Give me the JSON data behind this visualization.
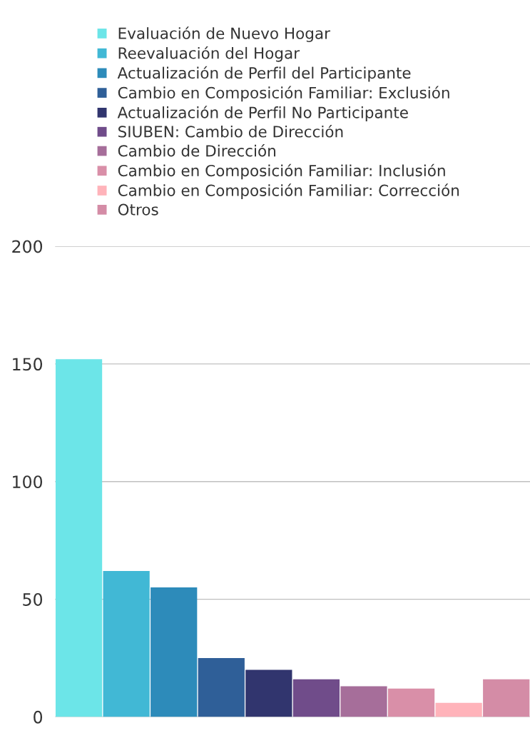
{
  "chart_data": {
    "type": "bar",
    "categories": [
      null,
      null,
      null,
      null,
      null,
      null,
      null,
      null,
      null,
      null
    ],
    "series": [
      {
        "name": "Evaluación de Nuevo Hogar",
        "color": "#6ce5e8",
        "values": [
          152,
          null,
          null,
          null,
          null,
          null,
          null,
          null,
          null,
          null
        ]
      },
      {
        "name": "Reevaluación del Hogar",
        "color": "#41b8d5",
        "values": [
          null,
          62,
          null,
          null,
          null,
          null,
          null,
          null,
          null,
          null
        ]
      },
      {
        "name": "Actualización de Perfil del Participante",
        "color": "#2d8bba",
        "values": [
          null,
          null,
          55,
          null,
          null,
          null,
          null,
          null,
          null,
          null
        ]
      },
      {
        "name": "Cambio en Composición Familiar: Exclusión",
        "color": "#2f5f98",
        "values": [
          null,
          null,
          null,
          25,
          null,
          null,
          null,
          null,
          null,
          null
        ]
      },
      {
        "name": "Actualización de Perfil No Participante",
        "color": "#31356e",
        "values": [
          null,
          null,
          null,
          null,
          20,
          null,
          null,
          null,
          null,
          null
        ]
      },
      {
        "name": "SIUBEN: Cambio de Dirección",
        "color": "#704c8a",
        "values": [
          null,
          null,
          null,
          null,
          null,
          16,
          null,
          null,
          null,
          null
        ]
      },
      {
        "name": "Cambio de Dirección",
        "color": "#a66e9a",
        "values": [
          null,
          null,
          null,
          null,
          null,
          null,
          13,
          null,
          null,
          null
        ]
      },
      {
        "name": "Cambio en Composición Familiar: Inclusión",
        "color": "#d98fa8",
        "values": [
          null,
          null,
          null,
          null,
          null,
          null,
          null,
          12,
          null,
          null
        ]
      },
      {
        "name": "Cambio en Composición Familiar: Corrección",
        "color": "#ffb3ba",
        "values": [
          null,
          null,
          null,
          null,
          null,
          null,
          null,
          null,
          6,
          null
        ]
      },
      {
        "name": "Otros",
        "color": "#d48ca6",
        "values": [
          null,
          null,
          null,
          null,
          null,
          null,
          null,
          null,
          null,
          16
        ]
      }
    ],
    "ylim": [
      0,
      200
    ],
    "yticks": [
      0,
      50,
      100,
      150,
      200
    ],
    "grid": "y",
    "legend": "top",
    "tick_labels": "y"
  }
}
